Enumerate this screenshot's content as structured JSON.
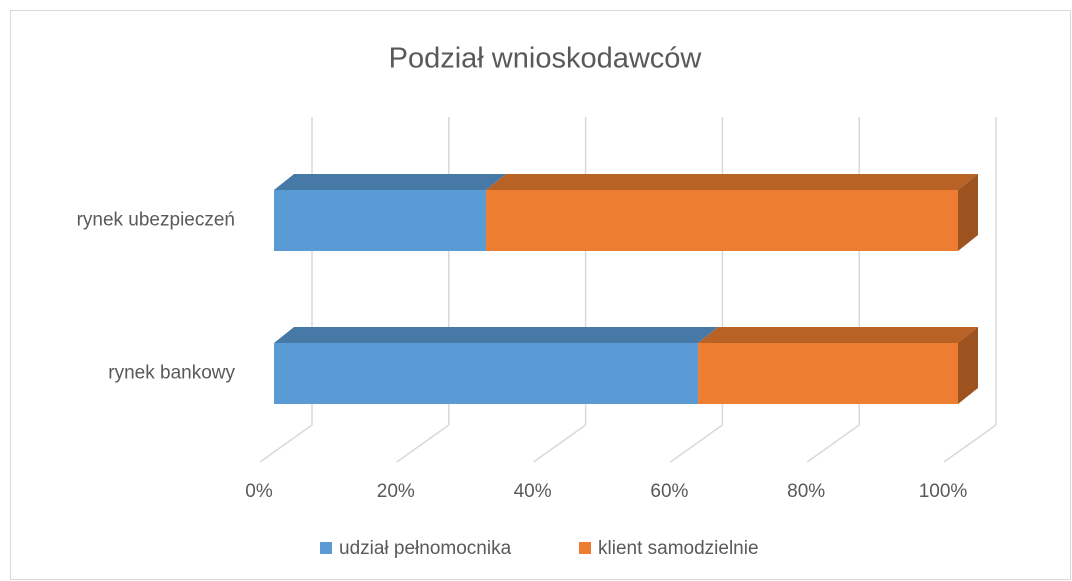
{
  "chart_data": {
    "type": "bar",
    "orientation": "horizontal",
    "stacked": "percent",
    "three_d": true,
    "title": "Podział wnioskodawców",
    "categories": [
      "rynek ubezpieczeń",
      "rynek bankowy"
    ],
    "series": [
      {
        "name": "udział pełnomocnika",
        "color": "#5b9bd5",
        "values": [
          31,
          62
        ]
      },
      {
        "name": "klient samodzielnie",
        "color": "#ed7d31",
        "values": [
          69,
          38
        ]
      }
    ],
    "xlim": [
      0,
      100
    ],
    "xticks": [
      {
        "value": 0,
        "label": "0%"
      },
      {
        "value": 20,
        "label": "20%"
      },
      {
        "value": 40,
        "label": "40%"
      },
      {
        "value": 60,
        "label": "60%"
      },
      {
        "value": 80,
        "label": "80%"
      },
      {
        "value": 100,
        "label": "100%"
      }
    ],
    "grid": true,
    "legend": "bottom"
  }
}
